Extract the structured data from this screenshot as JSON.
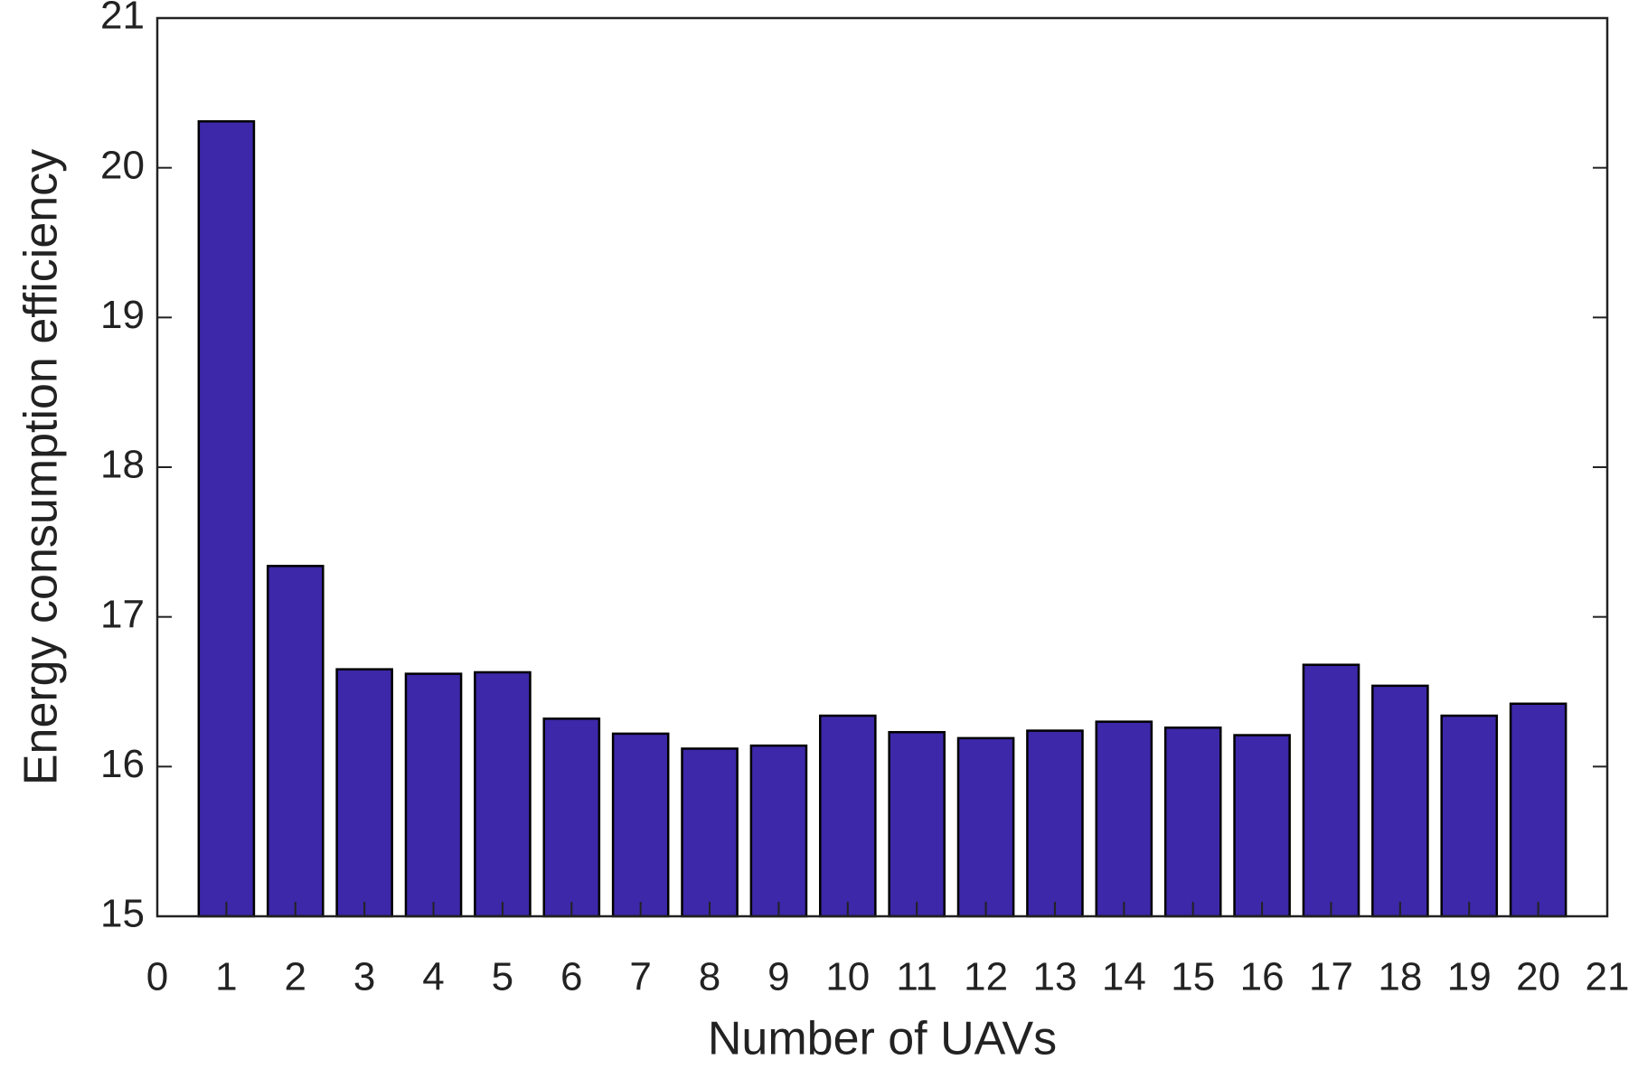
{
  "chart_data": {
    "type": "bar",
    "x_label": "Number of UAVs",
    "y_label": "Energy consumption efficiency",
    "x": [
      1,
      2,
      3,
      4,
      5,
      6,
      7,
      8,
      9,
      10,
      11,
      12,
      13,
      14,
      15,
      16,
      17,
      18,
      19,
      20
    ],
    "values": [
      20.31,
      17.34,
      16.65,
      16.62,
      16.63,
      16.32,
      16.22,
      16.12,
      16.14,
      16.34,
      16.23,
      16.19,
      16.24,
      16.3,
      16.26,
      16.21,
      16.68,
      16.54,
      16.34,
      16.42
    ],
    "color": "#3c28a8",
    "xlim": [
      0,
      21
    ],
    "xticks": [
      0,
      1,
      2,
      3,
      4,
      5,
      6,
      7,
      8,
      9,
      10,
      11,
      12,
      13,
      14,
      15,
      16,
      17,
      18,
      19,
      20,
      21
    ],
    "ylim": [
      15,
      21
    ],
    "yticks": [
      15,
      16,
      17,
      18,
      19,
      20,
      21
    ]
  }
}
